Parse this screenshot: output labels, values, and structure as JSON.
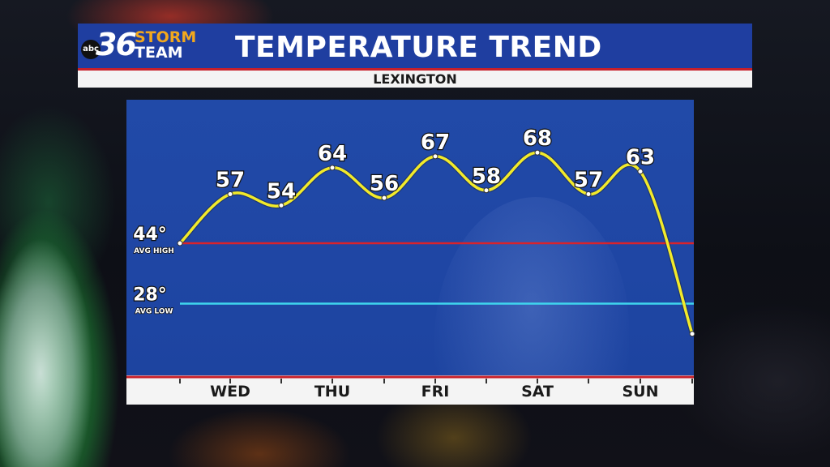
{
  "header": {
    "logo_prefix": "abc",
    "logo_number": "36",
    "logo_word1": "STORM",
    "logo_word2": "TEAM",
    "title": "TEMPERATURE TREND",
    "location": "LEXINGTON"
  },
  "colors": {
    "header_blue": "#1f3ea0",
    "accent_red": "#c8202a",
    "logo_orange": "#f2a81d",
    "trend_line": "#f2ea2a",
    "avg_high_line": "#d9232b",
    "avg_low_line": "#3fd6ee"
  },
  "chart_data": {
    "type": "line",
    "title": "TEMPERATURE TREND",
    "subtitle": "LEXINGTON",
    "x_labels": [
      "WED",
      "THU",
      "FRI",
      "SAT",
      "SUN"
    ],
    "series": [
      {
        "values": [
          44,
          57,
          54,
          64,
          56,
          67,
          58,
          68,
          57,
          63,
          20
        ]
      }
    ],
    "point_labels": [
      "",
      "57",
      "54",
      "64",
      "56",
      "67",
      "58",
      "68",
      "57",
      "63",
      ""
    ],
    "reference_lines": [
      {
        "value": 44,
        "label": "44°",
        "sublabel": "AVG HIGH",
        "color": "#d9232b"
      },
      {
        "value": 28,
        "label": "28°",
        "sublabel": "AVG LOW",
        "color": "#3fd6ee"
      }
    ],
    "ylim": [
      9,
      82
    ],
    "grid": false
  }
}
